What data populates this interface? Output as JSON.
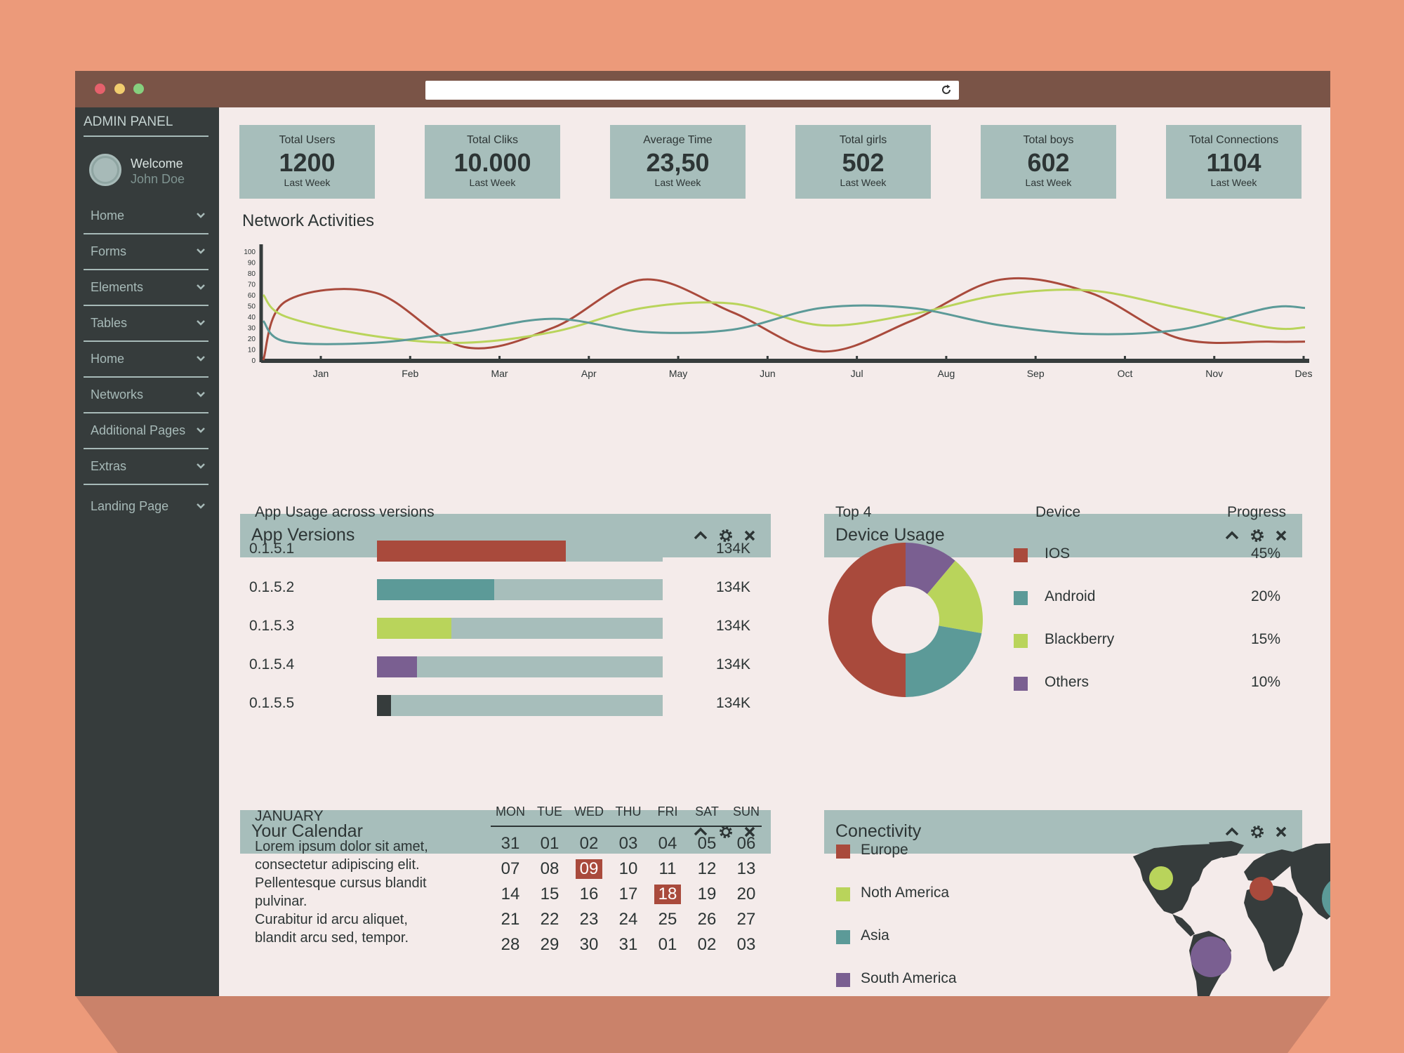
{
  "sidebar": {
    "title": "ADMIN PANEL",
    "welcome": "Welcome",
    "user_name": "John Doe",
    "items": [
      {
        "label": "Home"
      },
      {
        "label": "Forms"
      },
      {
        "label": "Elements"
      },
      {
        "label": "Tables"
      },
      {
        "label": "Home"
      },
      {
        "label": "Networks"
      },
      {
        "label": "Additional Pages"
      },
      {
        "label": "Extras"
      },
      {
        "label": "Landing Page"
      }
    ]
  },
  "stats": [
    {
      "label": "Total Users",
      "value": "1200",
      "sub": "Last Week"
    },
    {
      "label": "Total Cliks",
      "value": "10.000",
      "sub": "Last Week"
    },
    {
      "label": "Average Time",
      "value": "23,50",
      "sub": "Last Week"
    },
    {
      "label": "Total girls",
      "value": "502",
      "sub": "Last Week"
    },
    {
      "label": "Total boys",
      "value": "602",
      "sub": "Last Week"
    },
    {
      "label": "Total Connections",
      "value": "1104",
      "sub": "Last Week"
    }
  ],
  "network": {
    "title": "Network Activities"
  },
  "chart_data": [
    {
      "type": "line",
      "title": "Network Activities",
      "categories": [
        "Jan",
        "Feb",
        "Mar",
        "Apr",
        "May",
        "Jun",
        "Jul",
        "Aug",
        "Sep",
        "Oct",
        "Nov",
        "Des"
      ],
      "ylim": [
        0,
        100
      ],
      "yticks": [
        0,
        10,
        20,
        30,
        40,
        50,
        60,
        70,
        80,
        90,
        100
      ],
      "grid": false,
      "series": [
        {
          "color": "#a94a3c",
          "values": [
            54,
            62,
            12,
            30,
            74,
            44,
            8,
            36,
            74,
            62,
            20,
            17
          ]
        },
        {
          "color": "#b9d45b",
          "values": [
            40,
            22,
            16,
            26,
            48,
            52,
            32,
            42,
            60,
            64,
            48,
            30
          ]
        },
        {
          "color": "#5c9a98",
          "values": [
            17,
            16,
            26,
            38,
            26,
            28,
            48,
            48,
            32,
            24,
            28,
            48
          ]
        }
      ]
    },
    {
      "type": "pie",
      "title": "Top 4",
      "categories": [
        "IOS",
        "Android",
        "Blackberry",
        "Others"
      ],
      "values": [
        45,
        20,
        15,
        10
      ]
    }
  ],
  "app_versions": {
    "title": "App Versions",
    "subtitle": "App Usage across versions",
    "rows": [
      {
        "version": "0.1.5.1",
        "fraction": 0.66,
        "color": "#a94a3c",
        "count": "134K"
      },
      {
        "version": "0.1.5.2",
        "fraction": 0.41,
        "color": "#5c9a98",
        "count": "134K"
      },
      {
        "version": "0.1.5.3",
        "fraction": 0.26,
        "color": "#b9d45b",
        "count": "134K"
      },
      {
        "version": "0.1.5.4",
        "fraction": 0.14,
        "color": "#7a5f91",
        "count": "134K"
      },
      {
        "version": "0.1.5.5",
        "fraction": 0.05,
        "color": "#363c3c",
        "count": "134K"
      }
    ]
  },
  "device_usage": {
    "title": "Device Usage",
    "top_label": "Top 4",
    "col_device": "Device",
    "col_progress": "Progress",
    "devices": [
      {
        "name": "IOS",
        "percent": "45%",
        "color": "#a94a3c"
      },
      {
        "name": "Android",
        "percent": "20%",
        "color": "#5c9a98"
      },
      {
        "name": "Blackberry",
        "percent": "15%",
        "color": "#b9d45b"
      },
      {
        "name": "Others",
        "percent": "10%",
        "color": "#7a5f91"
      }
    ]
  },
  "calendar": {
    "title": "Your Calendar",
    "month": "JANUARY",
    "note_lines": [
      "Lorem ipsum dolor sit amet,",
      "consectetur adipiscing elit.",
      "Pellentesque cursus blandit",
      "pulvinar.",
      "Curabitur id arcu aliquet,",
      "blandit arcu sed, tempor."
    ],
    "days": [
      "MON",
      "TUE",
      "WED",
      "THU",
      "FRI",
      "SAT",
      "SUN"
    ],
    "weeks": [
      [
        "31",
        "01",
        "02",
        "03",
        "04",
        "05",
        "06"
      ],
      [
        "07",
        "08",
        "09",
        "10",
        "11",
        "12",
        "13"
      ],
      [
        "14",
        "15",
        "16",
        "17",
        "18",
        "19",
        "20"
      ],
      [
        "21",
        "22",
        "23",
        "24",
        "25",
        "26",
        "27"
      ],
      [
        "28",
        "29",
        "30",
        "31",
        "01",
        "02",
        "03"
      ]
    ],
    "highlighted": [
      "09",
      "18"
    ]
  },
  "connectivity": {
    "title": "Conectivity",
    "regions": [
      {
        "name": "Europe",
        "color": "#a94a3c"
      },
      {
        "name": "Noth America",
        "color": "#b9d45b"
      },
      {
        "name": "Asia",
        "color": "#5c9a98"
      },
      {
        "name": "South America",
        "color": "#7a5f91"
      }
    ]
  },
  "icons": {
    "reload": "reload-icon",
    "collapse": "chevron-up-icon",
    "settings": "gear-icon",
    "close": "close-icon",
    "nav_expand": "chevron-down-icon"
  }
}
